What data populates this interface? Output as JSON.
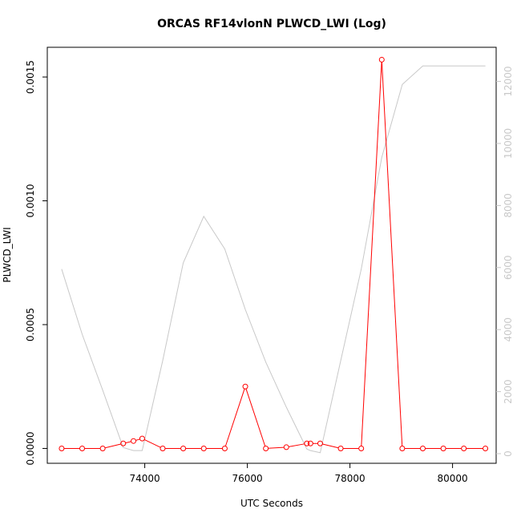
{
  "chart_data": {
    "type": "line",
    "title": "ORCAS RF14vlonN PLWCD_LWI (Log)",
    "xlabel": "UTC Seconds",
    "ylabel": "PLWCD_LWI",
    "xlim": [
      72100,
      80850
    ],
    "ylim": [
      -6e-05,
      0.00162
    ],
    "xticks": [
      74000,
      76000,
      78000,
      80000
    ],
    "yticks": [
      0.0,
      0.0005,
      0.001,
      0.0015
    ],
    "yticks_labels": [
      "0.0000",
      "0.0005",
      "0.0010",
      "0.0015"
    ],
    "y2lim": [
      -310,
      13100
    ],
    "y2ticks": [
      0,
      2000,
      4000,
      6000,
      8000,
      10000,
      12000
    ],
    "grid": false,
    "colors": {
      "primary": "#ff0000",
      "secondary": "#c8c8c8",
      "axis": "#000000"
    },
    "series": [
      {
        "axis": "left",
        "color": "#ff0000",
        "markers": "open-circle",
        "x": [
          72380,
          72780,
          73180,
          73580,
          73780,
          73950,
          74350,
          74750,
          75150,
          75560,
          75960,
          76360,
          76760,
          77160,
          77230,
          77420,
          77820,
          78220,
          78620,
          79020,
          79420,
          79820,
          80220,
          80640
        ],
        "values": [
          0.0,
          0.0,
          0.0,
          2e-05,
          3e-05,
          4e-05,
          0.0,
          0.0,
          0.0,
          0.0,
          0.00025,
          0.0,
          5e-06,
          2e-05,
          2e-05,
          2e-05,
          0.0,
          0.0,
          0.00157,
          0.0,
          0.0,
          0.0,
          0.0,
          0.0
        ]
      },
      {
        "axis": "right",
        "color": "#c8c8c8",
        "markers": "none",
        "x": [
          72380,
          72780,
          73180,
          73580,
          73780,
          73950,
          74350,
          74750,
          75150,
          75560,
          75960,
          76360,
          76760,
          77160,
          77230,
          77420,
          77820,
          78220,
          78620,
          79020,
          79420,
          79820,
          80220,
          80640
        ],
        "values": [
          5950,
          3850,
          2050,
          200,
          100,
          100,
          3000,
          6150,
          7650,
          6600,
          4650,
          2950,
          1500,
          150,
          100,
          30,
          3000,
          5950,
          9550,
          11900,
          12500,
          12500,
          12500,
          12500
        ]
      }
    ]
  }
}
